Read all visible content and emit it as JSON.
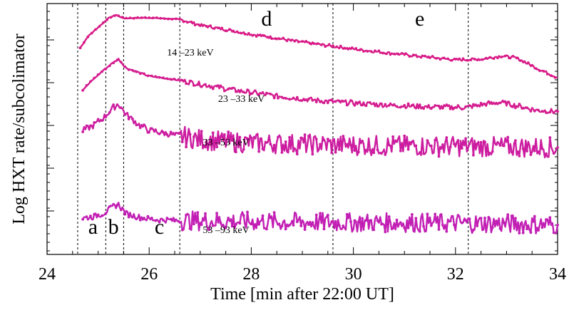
{
  "chart_data": {
    "type": "line",
    "title": "",
    "xlabel": "Time [min after 22:00 UT]",
    "ylabel": "Log HXT rate/subcolimator",
    "xlim": [
      24,
      34
    ],
    "xticks": [
      24,
      26,
      28,
      30,
      32,
      34
    ],
    "xtick_labels": [
      "24",
      "26",
      "28",
      "30",
      "32",
      "34"
    ],
    "y_scale": "log",
    "y_tick_labels_shown": false,
    "phase_boundaries": [
      24.6,
      25.15,
      25.5,
      26.6,
      29.6,
      32.25
    ],
    "phase_labels": [
      {
        "text": "a",
        "x": 24.9
      },
      {
        "text": "b",
        "x": 25.3
      },
      {
        "text": "c",
        "x": 26.2
      },
      {
        "text": "d",
        "x": 28.3
      },
      {
        "text": "e",
        "x": 31.3
      }
    ],
    "series": [
      {
        "name": "14 –23 keV",
        "color": "#d81b87",
        "points": [
          [
            24.65,
            5.8
          ],
          [
            24.8,
            6.8
          ],
          [
            25.0,
            7.6
          ],
          [
            25.2,
            8.4
          ],
          [
            25.35,
            8.7
          ],
          [
            25.5,
            8.4
          ],
          [
            26.0,
            8.45
          ],
          [
            26.6,
            8.3
          ],
          [
            27.0,
            7.8
          ],
          [
            28.0,
            7.0
          ],
          [
            29.0,
            6.3
          ],
          [
            30.0,
            5.7
          ],
          [
            31.0,
            5.2
          ],
          [
            32.0,
            4.75
          ],
          [
            32.5,
            4.8
          ],
          [
            32.9,
            5.1
          ],
          [
            33.2,
            4.9
          ],
          [
            33.6,
            4.0
          ],
          [
            34.0,
            3.2
          ]
        ]
      },
      {
        "name": "23 –33 keV",
        "color": "#d41c8f",
        "points": [
          [
            24.7,
            4.0
          ],
          [
            24.9,
            4.9
          ],
          [
            25.1,
            5.7
          ],
          [
            25.3,
            6.4
          ],
          [
            25.4,
            6.7
          ],
          [
            25.55,
            5.9
          ],
          [
            26.0,
            5.2
          ],
          [
            26.5,
            4.9
          ],
          [
            27.0,
            4.5
          ],
          [
            27.5,
            4.1
          ],
          [
            28.0,
            3.75
          ],
          [
            28.5,
            3.45
          ],
          [
            29.0,
            3.2
          ],
          [
            29.6,
            2.95
          ],
          [
            30.5,
            2.7
          ],
          [
            31.5,
            2.5
          ],
          [
            32.2,
            2.45
          ],
          [
            32.6,
            2.75
          ],
          [
            32.9,
            2.9
          ],
          [
            33.2,
            2.6
          ],
          [
            33.6,
            2.2
          ],
          [
            34.0,
            2.1
          ]
        ]
      },
      {
        "name": "33 –53 keV",
        "color": "#cc1da0",
        "points": [
          [
            24.7,
            2.0
          ],
          [
            24.9,
            2.4
          ],
          [
            25.1,
            3.1
          ],
          [
            25.3,
            4.0
          ],
          [
            25.4,
            4.3
          ],
          [
            25.55,
            3.4
          ],
          [
            25.8,
            2.5
          ],
          [
            26.0,
            2.0
          ],
          [
            26.5,
            1.6
          ],
          [
            27.0,
            1.2
          ],
          [
            27.5,
            1.0
          ],
          [
            28.0,
            0.9
          ],
          [
            29.0,
            0.8
          ],
          [
            30.0,
            0.7
          ],
          [
            31.0,
            0.65
          ],
          [
            32.0,
            0.6
          ],
          [
            33.0,
            0.55
          ],
          [
            34.0,
            0.5
          ]
        ]
      },
      {
        "name": "53 –93 keV",
        "color": "#c21fb4",
        "points": [
          [
            24.7,
            -1.0
          ],
          [
            24.9,
            -0.9
          ],
          [
            25.1,
            -0.6
          ],
          [
            25.3,
            0.0
          ],
          [
            25.4,
            0.2
          ],
          [
            25.55,
            -0.6
          ],
          [
            25.8,
            -0.9
          ],
          [
            26.0,
            -1.1
          ],
          [
            26.5,
            -1.2
          ],
          [
            27.0,
            -1.25
          ],
          [
            28.0,
            -1.3
          ],
          [
            29.0,
            -1.35
          ],
          [
            30.0,
            -1.4
          ],
          [
            31.0,
            -1.4
          ],
          [
            32.0,
            -1.45
          ],
          [
            33.0,
            -1.5
          ],
          [
            34.0,
            -1.6
          ]
        ]
      }
    ]
  }
}
